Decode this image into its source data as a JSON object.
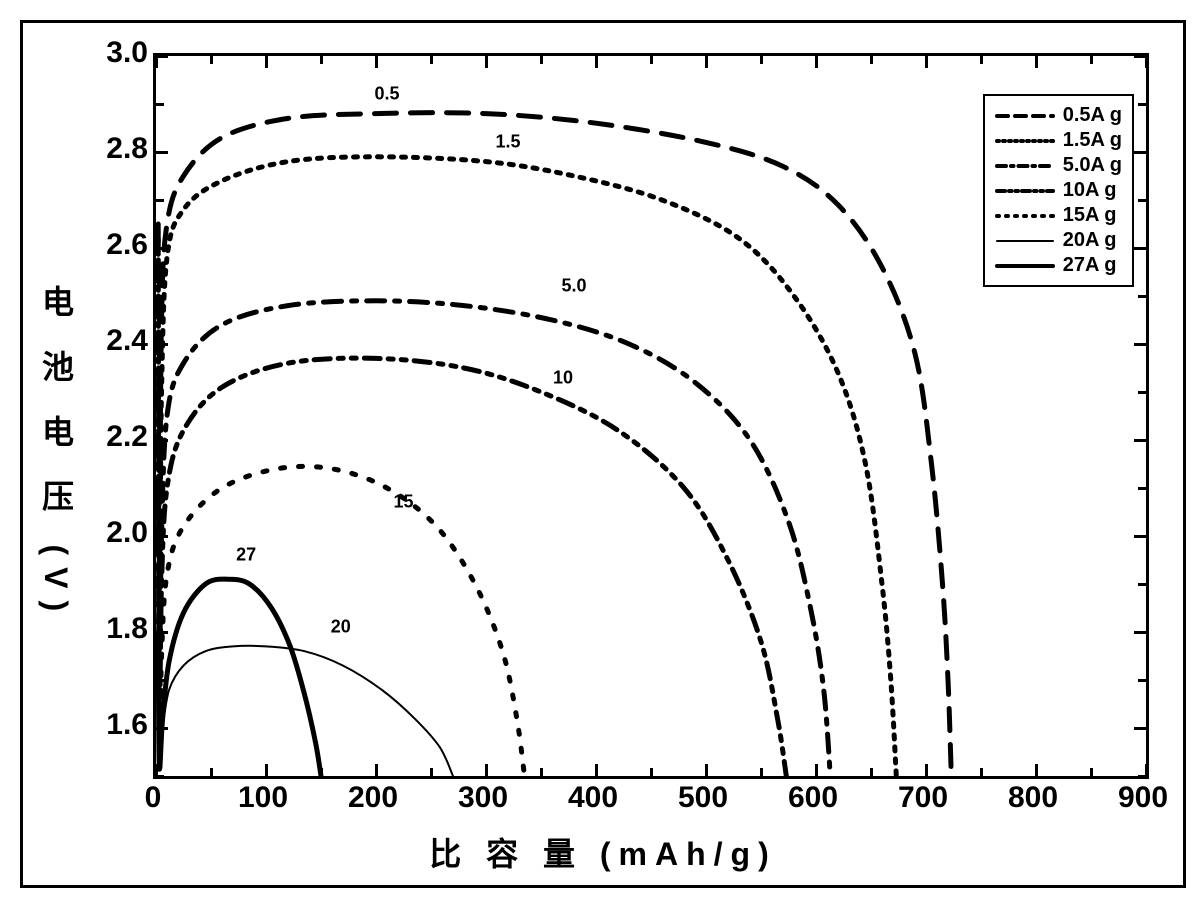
{
  "chart": {
    "type": "line",
    "xlabel": "比 容 量 (mAh/g)",
    "ylabel": "电 池 电 压 (V)",
    "label_fontsize": 32,
    "tick_fontsize": 30,
    "background_color": "#ffffff",
    "border_color": "#000000",
    "border_width": 3,
    "xlim": [
      0,
      900
    ],
    "ylim": [
      1.5,
      3.0
    ],
    "xticks": [
      0,
      100,
      200,
      300,
      400,
      500,
      600,
      700,
      800,
      900
    ],
    "yticks": [
      1.6,
      1.8,
      2.0,
      2.2,
      2.4,
      2.6,
      2.8,
      3.0
    ],
    "ytick_minor_count": 1,
    "xtick_minor_count": 1,
    "legend": {
      "items": [
        {
          "label": "0.5A g",
          "style": "long-dash",
          "width": 4
        },
        {
          "label": "1.5A g",
          "style": "dot-dense",
          "width": 4
        },
        {
          "label": "5.0A g",
          "style": "dash-dot",
          "width": 4
        },
        {
          "label": "10A g",
          "style": "dash-dot-dot",
          "width": 4
        },
        {
          "label": "15A g",
          "style": "dot-sparse",
          "width": 4
        },
        {
          "label": "20A g",
          "style": "solid-thin",
          "width": 2
        },
        {
          "label": "27A g",
          "style": "solid-thick",
          "width": 4
        }
      ],
      "border_color": "#000000",
      "background_color": "#ffffff",
      "fontsize": 20
    },
    "series": [
      {
        "name": "0.5A g",
        "style": "long-dash",
        "width": 5,
        "color": "#000000",
        "label_pos": [
          210,
          2.92
        ],
        "label_text": "0.5",
        "points": [
          [
            2,
            2.65
          ],
          [
            3,
            1.95
          ],
          [
            5,
            2.45
          ],
          [
            10,
            2.65
          ],
          [
            25,
            2.75
          ],
          [
            60,
            2.83
          ],
          [
            120,
            2.87
          ],
          [
            200,
            2.88
          ],
          [
            300,
            2.88
          ],
          [
            400,
            2.86
          ],
          [
            500,
            2.82
          ],
          [
            570,
            2.77
          ],
          [
            620,
            2.69
          ],
          [
            660,
            2.56
          ],
          [
            690,
            2.38
          ],
          [
            705,
            2.15
          ],
          [
            715,
            1.9
          ],
          [
            720,
            1.7
          ],
          [
            723,
            1.5
          ]
        ]
      },
      {
        "name": "1.5A g",
        "style": "dot-dense",
        "width": 5,
        "color": "#000000",
        "label_pos": [
          320,
          2.82
        ],
        "label_text": "1.5",
        "points": [
          [
            2,
            2.62
          ],
          [
            3,
            1.85
          ],
          [
            5,
            2.3
          ],
          [
            10,
            2.58
          ],
          [
            25,
            2.68
          ],
          [
            60,
            2.74
          ],
          [
            120,
            2.78
          ],
          [
            200,
            2.79
          ],
          [
            300,
            2.78
          ],
          [
            380,
            2.75
          ],
          [
            460,
            2.7
          ],
          [
            530,
            2.62
          ],
          [
            580,
            2.5
          ],
          [
            620,
            2.34
          ],
          [
            645,
            2.15
          ],
          [
            660,
            1.9
          ],
          [
            668,
            1.7
          ],
          [
            673,
            1.5
          ]
        ]
      },
      {
        "name": "5.0A g",
        "style": "dash-dot",
        "width": 5,
        "color": "#000000",
        "label_pos": [
          380,
          2.52
        ],
        "label_text": "5.0",
        "points": [
          [
            2,
            2.3
          ],
          [
            3,
            1.7
          ],
          [
            5,
            2.0
          ],
          [
            10,
            2.25
          ],
          [
            25,
            2.36
          ],
          [
            60,
            2.44
          ],
          [
            120,
            2.48
          ],
          [
            200,
            2.49
          ],
          [
            280,
            2.48
          ],
          [
            360,
            2.45
          ],
          [
            430,
            2.4
          ],
          [
            490,
            2.32
          ],
          [
            540,
            2.2
          ],
          [
            575,
            2.03
          ],
          [
            595,
            1.85
          ],
          [
            607,
            1.68
          ],
          [
            613,
            1.5
          ]
        ]
      },
      {
        "name": "10A g",
        "style": "dash-dot-dot",
        "width": 5,
        "color": "#000000",
        "label_pos": [
          370,
          2.33
        ],
        "label_text": "10",
        "points": [
          [
            2,
            2.2
          ],
          [
            3,
            1.6
          ],
          [
            5,
            1.9
          ],
          [
            10,
            2.1
          ],
          [
            25,
            2.22
          ],
          [
            60,
            2.31
          ],
          [
            120,
            2.36
          ],
          [
            200,
            2.37
          ],
          [
            280,
            2.35
          ],
          [
            350,
            2.3
          ],
          [
            420,
            2.22
          ],
          [
            480,
            2.1
          ],
          [
            520,
            1.95
          ],
          [
            550,
            1.78
          ],
          [
            565,
            1.62
          ],
          [
            573,
            1.5
          ]
        ]
      },
      {
        "name": "15A g",
        "style": "dot-sparse",
        "width": 5,
        "color": "#000000",
        "label_pos": [
          225,
          2.07
        ],
        "label_text": "15",
        "points": [
          [
            2,
            2.05
          ],
          [
            3,
            1.55
          ],
          [
            5,
            1.75
          ],
          [
            10,
            1.92
          ],
          [
            25,
            2.02
          ],
          [
            60,
            2.1
          ],
          [
            110,
            2.14
          ],
          [
            160,
            2.14
          ],
          [
            210,
            2.1
          ],
          [
            255,
            2.02
          ],
          [
            290,
            1.9
          ],
          [
            315,
            1.76
          ],
          [
            328,
            1.62
          ],
          [
            335,
            1.5
          ]
        ]
      },
      {
        "name": "20A g",
        "style": "solid-thin",
        "width": 2,
        "color": "#000000",
        "label_pos": [
          168,
          1.81
        ],
        "label_text": "20",
        "points": [
          [
            2,
            1.92
          ],
          [
            3,
            1.55
          ],
          [
            6,
            1.6
          ],
          [
            12,
            1.68
          ],
          [
            25,
            1.73
          ],
          [
            45,
            1.76
          ],
          [
            70,
            1.77
          ],
          [
            100,
            1.77
          ],
          [
            135,
            1.76
          ],
          [
            170,
            1.73
          ],
          [
            205,
            1.68
          ],
          [
            235,
            1.62
          ],
          [
            258,
            1.56
          ],
          [
            270,
            1.5
          ]
        ]
      },
      {
        "name": "27A g",
        "style": "solid-thick",
        "width": 5,
        "color": "#000000",
        "label_pos": [
          82,
          1.96
        ],
        "label_text": "27",
        "points": [
          [
            2,
            1.8
          ],
          [
            3,
            1.52
          ],
          [
            6,
            1.62
          ],
          [
            12,
            1.74
          ],
          [
            25,
            1.84
          ],
          [
            45,
            1.9
          ],
          [
            65,
            1.91
          ],
          [
            85,
            1.9
          ],
          [
            105,
            1.85
          ],
          [
            122,
            1.77
          ],
          [
            135,
            1.67
          ],
          [
            145,
            1.57
          ],
          [
            150,
            1.5
          ]
        ]
      }
    ]
  }
}
